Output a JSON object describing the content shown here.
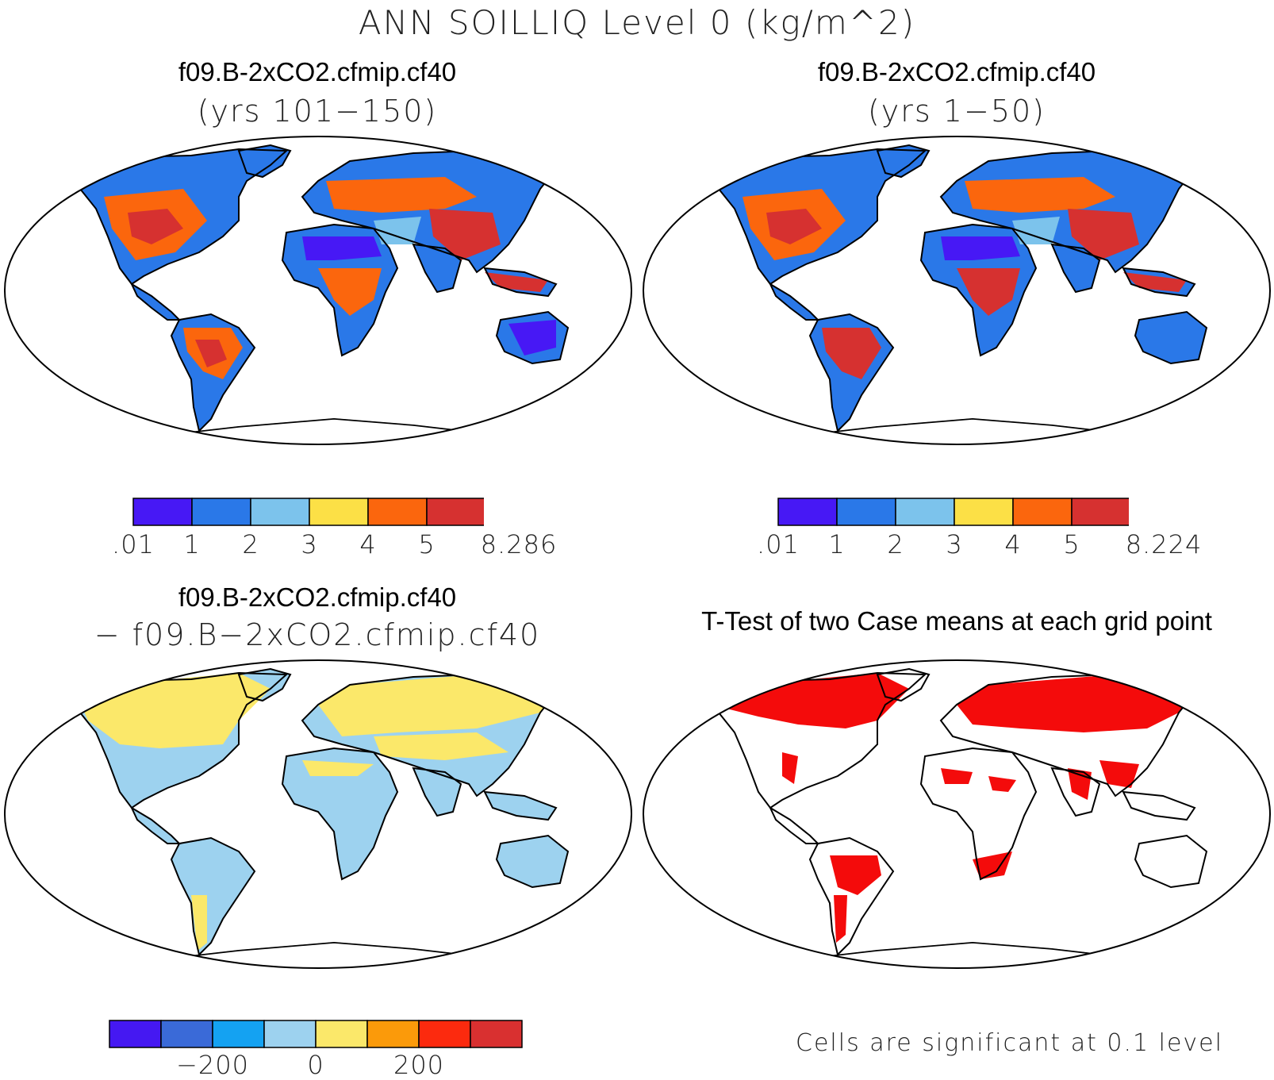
{
  "main_title": "ANN SOILLIQ Level 0 (kg/m^2)",
  "panels": [
    {
      "title": "f09.B-2xCO2.cfmip.cf40",
      "subtitle": "(yrs 101−150)",
      "colorbar": {
        "colors": [
          "#4718f5",
          "#2a78e8",
          "#7cc3ec",
          "#fce046",
          "#fb660d",
          "#d63130"
        ],
        "labels": [
          ".01",
          "1",
          "2",
          "3",
          "4",
          "5",
          "8.286"
        ]
      }
    },
    {
      "title": "f09.B-2xCO2.cfmip.cf40",
      "subtitle": "(yrs 1−50)",
      "colorbar": {
        "colors": [
          "#4718f5",
          "#2a78e8",
          "#7cc3ec",
          "#fce046",
          "#fb660d",
          "#d63130"
        ],
        "labels": [
          ".01",
          "1",
          "2",
          "3",
          "4",
          "5",
          "8.224"
        ]
      }
    },
    {
      "title": "f09.B-2xCO2.cfmip.cf40",
      "subtitle": "− f09.B−2xCO2.cfmip.cf40",
      "colorbar": {
        "colors": [
          "#4518f2",
          "#3a6ad8",
          "#14a2f2",
          "#9dd2ef",
          "#fbe86a",
          "#fb9a0a",
          "#fc2a0e",
          "#d93030"
        ],
        "labels": [
          "−200",
          "0",
          "200"
        ]
      }
    },
    {
      "title": "T-Test of two Case means at each grid point",
      "note": "Cells are significant at 0.1 level",
      "color": "#f40b0b"
    }
  ]
}
